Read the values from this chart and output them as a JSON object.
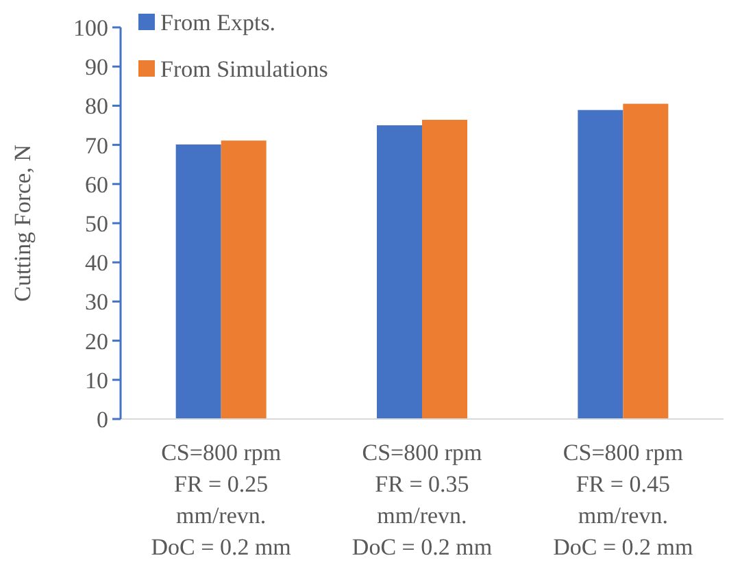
{
  "chart_data": {
    "type": "bar",
    "ylabel": "Cutting Force, N",
    "categories": [
      "CS=800 rpm\nFR = 0.25\nmm/revn.\nDoC = 0.2 mm",
      "CS=800 rpm\nFR = 0.35\nmm/revn.\nDoC = 0.2 mm",
      "CS=800 rpm\nFR = 0.45\nmm/revn.\nDoC = 0.2 mm"
    ],
    "series": [
      {
        "name": "From Expts.",
        "color": "#4472c4",
        "values": [
          70.1,
          75,
          78.9
        ]
      },
      {
        "name": "From Simulations",
        "color": "#ed7d31",
        "values": [
          71.1,
          76.4,
          80.5
        ]
      }
    ],
    "ylim": [
      0,
      100
    ],
    "yticks": [
      0,
      10,
      20,
      30,
      40,
      50,
      60,
      70,
      80,
      90,
      100
    ],
    "grid": false,
    "legend": "top"
  }
}
